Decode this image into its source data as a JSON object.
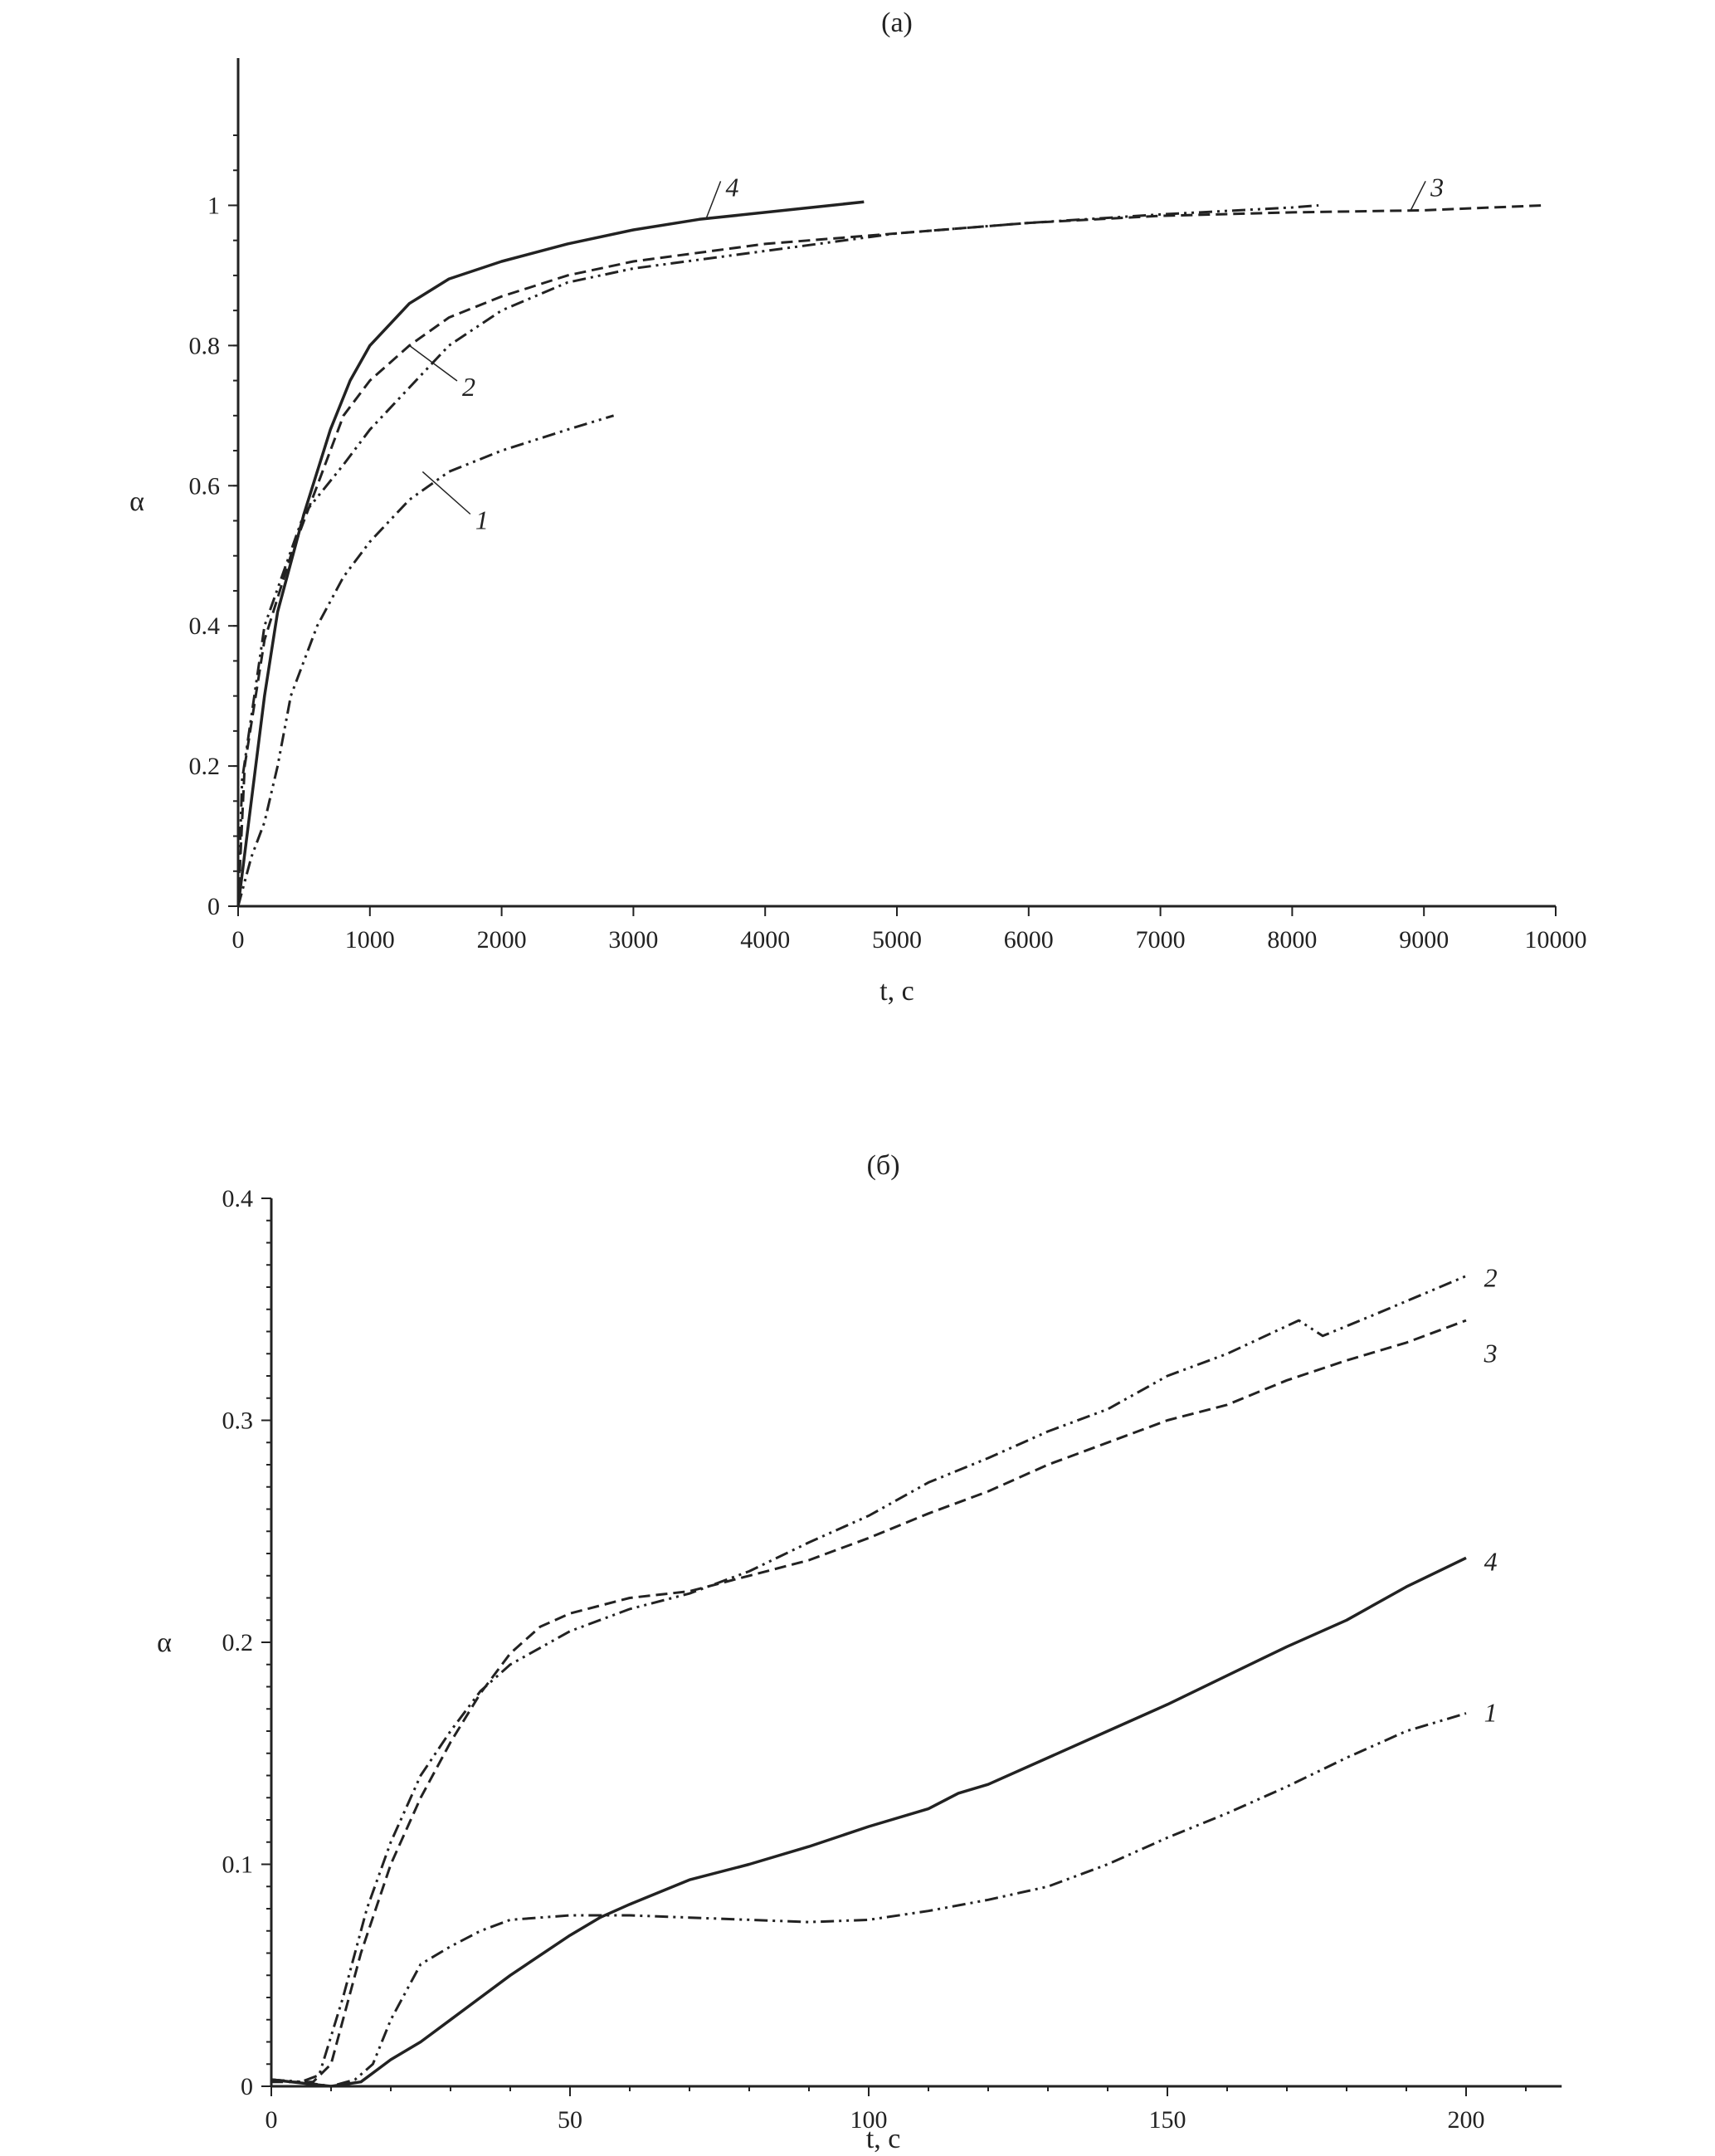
{
  "chart_data": [
    {
      "type": "line",
      "title": "(a)",
      "xlabel": "t, с",
      "ylabel": "α",
      "xlim": [
        0,
        10000
      ],
      "ylim": [
        0,
        1.1
      ],
      "xticks": [
        0,
        1000,
        2000,
        3000,
        4000,
        5000,
        6000,
        7000,
        8000,
        9000,
        10000
      ],
      "yticks": [
        0,
        0.2,
        0.4,
        0.6,
        0.8,
        1
      ],
      "ytick_labels": [
        "0",
        "0.2",
        "0.4",
        "0.6",
        "0.8",
        "1"
      ],
      "grid": false,
      "line_color": "#222222",
      "series": [
        {
          "name": "1",
          "style": "dash-dot-dot",
          "label_at": [
            1800,
            0.55
          ],
          "x": [
            0,
            100,
            200,
            300,
            400,
            600,
            800,
            1000,
            1300,
            1600,
            2000,
            2500,
            2850
          ],
          "y": [
            0,
            0.07,
            0.12,
            0.2,
            0.3,
            0.4,
            0.47,
            0.52,
            0.58,
            0.62,
            0.65,
            0.68,
            0.7
          ]
        },
        {
          "name": "2",
          "style": "dash-dot-dot",
          "label_at": [
            1700,
            0.74
          ],
          "x": [
            0,
            30,
            200,
            500,
            800,
            1000,
            1300,
            1600,
            2000,
            2500,
            3000,
            4000,
            5000,
            6000,
            7000,
            8000,
            8200
          ],
          "y": [
            0,
            0.18,
            0.4,
            0.56,
            0.63,
            0.68,
            0.74,
            0.8,
            0.85,
            0.89,
            0.91,
            0.935,
            0.96,
            0.975,
            0.987,
            0.997,
            1.0
          ]
        },
        {
          "name": "3",
          "style": "dashed",
          "label_at": [
            9050,
            1.025
          ],
          "x": [
            0,
            50,
            200,
            400,
            600,
            800,
            1000,
            1300,
            1600,
            2000,
            2500,
            3000,
            4000,
            5000,
            6000,
            7000,
            8000,
            9000,
            9900
          ],
          "y": [
            0,
            0.2,
            0.38,
            0.5,
            0.6,
            0.7,
            0.75,
            0.8,
            0.84,
            0.87,
            0.9,
            0.92,
            0.945,
            0.96,
            0.975,
            0.985,
            0.99,
            0.993,
            1.0
          ]
        },
        {
          "name": "4",
          "style": "solid",
          "label_at": [
            3700,
            1.025
          ],
          "x": [
            0,
            100,
            200,
            300,
            500,
            700,
            850,
            1000,
            1300,
            1600,
            2000,
            2500,
            3000,
            3500,
            4000,
            4500,
            4750
          ],
          "y": [
            0,
            0.15,
            0.3,
            0.42,
            0.56,
            0.68,
            0.75,
            0.8,
            0.86,
            0.895,
            0.92,
            0.945,
            0.965,
            0.98,
            0.99,
            1.0,
            1.005
          ]
        }
      ]
    },
    {
      "type": "line",
      "title": "(б)",
      "xlabel": "t, с",
      "ylabel": "α",
      "xlim": [
        0,
        216
      ],
      "ylim": [
        0,
        0.4
      ],
      "xticks": [
        0,
        50,
        100,
        150,
        200
      ],
      "yticks": [
        0,
        0.1,
        0.2,
        0.3,
        0.4
      ],
      "ytick_labels": [
        "0",
        "0.1",
        "0.2",
        "0.3",
        "0.4"
      ],
      "grid": false,
      "line_color": "#222222",
      "series": [
        {
          "name": "1",
          "style": "dash-dot-dot",
          "label_at": [
            203,
            0.168
          ],
          "x": [
            0,
            5,
            10,
            14,
            17,
            20,
            25,
            30,
            35,
            40,
            50,
            60,
            70,
            80,
            90,
            100,
            110,
            120,
            130,
            140,
            150,
            160,
            170,
            180,
            190,
            200
          ],
          "y": [
            0.003,
            0.002,
            0,
            0.003,
            0.01,
            0.03,
            0.055,
            0.063,
            0.07,
            0.075,
            0.077,
            0.077,
            0.076,
            0.075,
            0.074,
            0.075,
            0.079,
            0.084,
            0.09,
            0.1,
            0.112,
            0.123,
            0.135,
            0.148,
            0.16,
            0.168
          ]
        },
        {
          "name": "2",
          "style": "dash-dot-dot",
          "label_at": [
            203,
            0.364
          ],
          "x": [
            0,
            5,
            8,
            12,
            16,
            20,
            25,
            30,
            35,
            40,
            50,
            60,
            70,
            80,
            90,
            100,
            110,
            120,
            130,
            140,
            150,
            160,
            172,
            176,
            185,
            200
          ],
          "y": [
            0.003,
            0.002,
            0.005,
            0.04,
            0.08,
            0.11,
            0.14,
            0.16,
            0.178,
            0.19,
            0.205,
            0.215,
            0.222,
            0.232,
            0.245,
            0.257,
            0.272,
            0.283,
            0.295,
            0.305,
            0.32,
            0.33,
            0.345,
            0.338,
            0.348,
            0.365
          ]
        },
        {
          "name": "3",
          "style": "dashed",
          "label_at": [
            203,
            0.33
          ],
          "x": [
            0,
            7,
            10,
            15,
            20,
            25,
            30,
            35,
            40,
            45,
            50,
            60,
            70,
            80,
            90,
            100,
            110,
            120,
            130,
            140,
            150,
            160,
            170,
            180,
            190,
            200
          ],
          "y": [
            0.002,
            0.002,
            0.01,
            0.06,
            0.1,
            0.13,
            0.155,
            0.177,
            0.195,
            0.207,
            0.213,
            0.22,
            0.223,
            0.23,
            0.237,
            0.247,
            0.258,
            0.268,
            0.28,
            0.29,
            0.3,
            0.307,
            0.318,
            0.327,
            0.335,
            0.345
          ]
        },
        {
          "name": "4",
          "style": "solid",
          "label_at": [
            203,
            0.236
          ],
          "x": [
            0,
            10,
            15,
            18,
            20,
            25,
            30,
            40,
            50,
            55,
            60,
            70,
            80,
            90,
            100,
            110,
            115,
            120,
            130,
            140,
            150,
            160,
            170,
            180,
            190,
            200
          ],
          "y": [
            0.003,
            0,
            0.002,
            0.008,
            0.012,
            0.02,
            0.03,
            0.05,
            0.068,
            0.076,
            0.082,
            0.093,
            0.1,
            0.108,
            0.117,
            0.125,
            0.132,
            0.136,
            0.148,
            0.16,
            0.172,
            0.185,
            0.198,
            0.21,
            0.225,
            0.238
          ]
        }
      ]
    }
  ]
}
